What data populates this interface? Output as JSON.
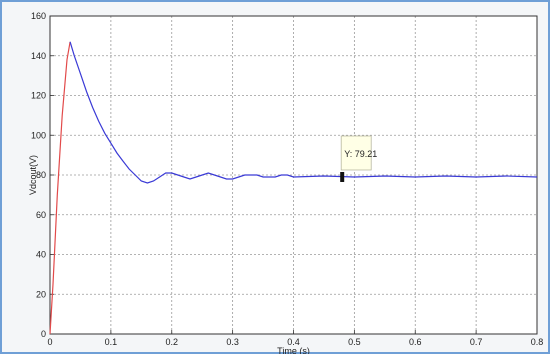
{
  "chart_data": {
    "type": "line",
    "xlabel": "Time (s)",
    "ylabel": "Vdcout(V)",
    "xlim": [
      0,
      0.8
    ],
    "ylim": [
      0,
      160
    ],
    "grid": true,
    "x_ticks": [
      "0",
      "0.1",
      "0.2",
      "0.3",
      "0.4",
      "0.5",
      "0.6",
      "0.7",
      "0.8"
    ],
    "y_ticks": [
      "0",
      "20",
      "40",
      "60",
      "80",
      "100",
      "120",
      "140",
      "160"
    ],
    "series": [
      {
        "color": "#e24a4a",
        "x": [
          0,
          0.005,
          0.012,
          0.02,
          0.028,
          0.033
        ],
        "y": [
          0,
          25,
          70,
          110,
          138,
          147
        ]
      },
      {
        "color": "#3a3ad6",
        "x": [
          0.033,
          0.04,
          0.05,
          0.06,
          0.07,
          0.08,
          0.09,
          0.1,
          0.11,
          0.12,
          0.13,
          0.14,
          0.15,
          0.16,
          0.17,
          0.18,
          0.19,
          0.2,
          0.21,
          0.22,
          0.23,
          0.24,
          0.25,
          0.26,
          0.27,
          0.28,
          0.29,
          0.3,
          0.31,
          0.32,
          0.33,
          0.34,
          0.35,
          0.36,
          0.37,
          0.38,
          0.39,
          0.4,
          0.45,
          0.5,
          0.55,
          0.6,
          0.65,
          0.7,
          0.75,
          0.8
        ],
        "y": [
          147,
          140,
          131,
          122,
          114,
          107,
          101,
          96,
          91,
          87,
          83,
          80,
          77,
          76,
          77,
          79,
          81,
          81,
          80,
          79,
          78,
          79,
          80,
          81,
          80,
          79,
          78,
          78,
          79,
          80,
          80,
          80,
          79,
          79,
          79,
          80,
          80,
          79,
          79.5,
          79,
          79.5,
          79,
          79.5,
          79,
          79.5,
          79
        ]
      }
    ],
    "datatip": {
      "x": 0.48,
      "y": 79,
      "label": "Y: 79.21"
    }
  }
}
